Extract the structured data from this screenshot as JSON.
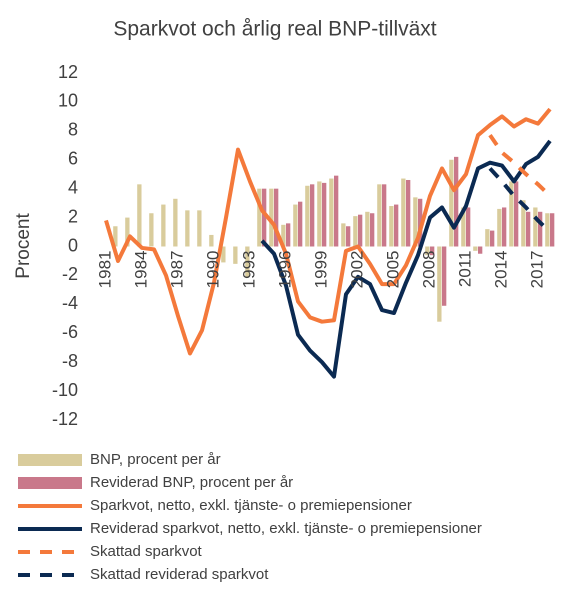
{
  "chart_data": {
    "type": "combo",
    "title": "Sparkvot och årlig real BNP-tillväxt",
    "y_label": "Procent",
    "categories": [
      "1981",
      null,
      null,
      "1984",
      null,
      null,
      "1987",
      null,
      null,
      "1990",
      null,
      null,
      "1993",
      null,
      null,
      "1996",
      null,
      null,
      "1999",
      null,
      null,
      "2002",
      null,
      null,
      "2005",
      null,
      null,
      "2008",
      null,
      null,
      "2011",
      null,
      null,
      "2014",
      null,
      null,
      "2017",
      null
    ],
    "ylim": [
      -12,
      12
    ],
    "yticks": [
      -12,
      -10,
      -8,
      -6,
      -4,
      -2,
      0,
      2,
      4,
      6,
      8,
      10,
      12
    ],
    "grid": false,
    "series": [
      {
        "name": "BNP, procent per år",
        "type": "bar",
        "color": "#d9cc9c",
        "values": [
          0.0,
          1.4,
          2.0,
          4.3,
          2.3,
          2.9,
          3.3,
          2.5,
          2.5,
          0.8,
          -1.1,
          -1.2,
          -2.1,
          4.0,
          4.0,
          1.5,
          2.9,
          4.2,
          4.5,
          4.7,
          1.6,
          2.1,
          2.4,
          4.3,
          2.8,
          4.7,
          3.4,
          -0.6,
          -5.2,
          6.0,
          2.7,
          -0.3,
          1.2,
          2.6,
          4.5,
          3.2,
          2.7,
          2.3
        ]
      },
      {
        "name": "Reviderad BNP, procent per år",
        "type": "bar",
        "color": "#c9788a",
        "values": [
          null,
          null,
          null,
          null,
          null,
          null,
          null,
          null,
          null,
          null,
          null,
          null,
          null,
          4.0,
          4.0,
          1.6,
          3.1,
          4.3,
          4.4,
          4.9,
          1.4,
          2.2,
          2.3,
          4.3,
          2.9,
          4.6,
          3.3,
          -0.6,
          -4.1,
          6.2,
          2.7,
          -0.5,
          1.1,
          2.7,
          4.5,
          2.4,
          2.4,
          2.3
        ]
      },
      {
        "name": "Sparkvot, netto, exkl. tjänste- o premiepensioner",
        "type": "line",
        "dashed": false,
        "color": "#f4793b",
        "values": [
          1.8,
          -1.0,
          0.7,
          -0.1,
          -0.2,
          -2.0,
          -4.8,
          -7.4,
          -5.8,
          -2.5,
          2.0,
          6.7,
          4.5,
          2.5,
          1.5,
          -0.5,
          -3.8,
          -4.9,
          -5.2,
          -5.1,
          -0.3,
          0.0,
          -1.2,
          -2.6,
          -2.6,
          -1.3,
          0.6,
          3.5,
          5.4,
          3.9,
          5.0,
          7.7,
          8.4,
          9.0,
          8.3,
          8.8,
          8.5,
          9.5
        ]
      },
      {
        "name": "Reviderad sparkvot, netto, exkl. tjänste- o premiepensioner",
        "type": "line",
        "dashed": false,
        "color": "#0b2a52",
        "values": [
          null,
          null,
          null,
          null,
          null,
          null,
          null,
          null,
          null,
          null,
          null,
          null,
          null,
          0.4,
          -0.5,
          -2.7,
          -6.1,
          -7.2,
          -8.0,
          -9.0,
          -3.3,
          -2.1,
          -2.6,
          -4.4,
          -4.6,
          -2.5,
          -0.6,
          2.0,
          2.7,
          1.3,
          2.8,
          5.4,
          5.8,
          5.6,
          4.5,
          5.7,
          6.2,
          7.3
        ]
      },
      {
        "name": "Skattad sparkvot",
        "type": "line",
        "dashed": true,
        "color": "#f4793b",
        "values": [
          null,
          null,
          null,
          null,
          null,
          null,
          null,
          null,
          null,
          null,
          null,
          null,
          null,
          null,
          null,
          null,
          null,
          null,
          null,
          null,
          null,
          null,
          null,
          null,
          null,
          null,
          null,
          null,
          null,
          null,
          null,
          null,
          7.7,
          6.5,
          5.8,
          5.0,
          4.3,
          3.5
        ]
      },
      {
        "name": "Skattad reviderad sparkvot",
        "type": "line",
        "dashed": true,
        "color": "#0b2a52",
        "values": [
          null,
          null,
          null,
          null,
          null,
          null,
          null,
          null,
          null,
          null,
          null,
          null,
          null,
          null,
          null,
          null,
          null,
          null,
          null,
          null,
          null,
          null,
          null,
          null,
          null,
          null,
          null,
          null,
          null,
          null,
          null,
          null,
          5.4,
          4.5,
          3.5,
          2.7,
          1.8,
          1.0
        ]
      }
    ]
  }
}
